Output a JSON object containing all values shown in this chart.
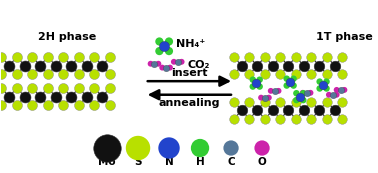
{
  "bg_color": "#ffffff",
  "left_label": "2H phase",
  "right_label": "1T phase",
  "nh4_label": "NH₄⁺",
  "co2_label": "CO₂",
  "arrow1_label": "insert",
  "arrow2_label": "annealing",
  "mo_color": "#111111",
  "s_color": "#b8e000",
  "n_color": "#2244cc",
  "h_color": "#33cc33",
  "c_color": "#557799",
  "o_color": "#cc22aa",
  "legend_labels": [
    "Mo",
    "S",
    "N",
    "H",
    "C",
    "O"
  ],
  "legend_colors": [
    "#111111",
    "#b8e000",
    "#2244cc",
    "#33cc33",
    "#557799",
    "#cc22aa"
  ],
  "legend_sizes": [
    9,
    8,
    7,
    6,
    5,
    5
  ]
}
